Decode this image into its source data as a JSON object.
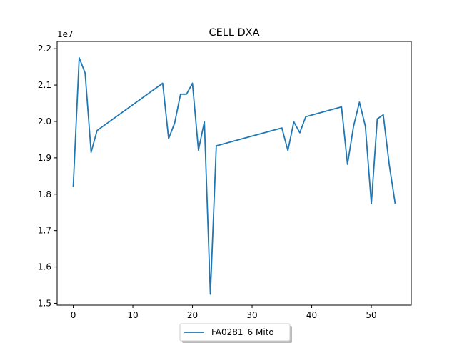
{
  "chart_data": {
    "type": "line",
    "title": "CELL DXA",
    "xlabel": "",
    "ylabel": "",
    "y_offset_label": "1e7",
    "xlim": [
      -2.7,
      56.7
    ],
    "ylim": [
      14950000.0,
      22200000.0
    ],
    "xticks": [
      0,
      10,
      20,
      30,
      40,
      50
    ],
    "xtick_labels": [
      "0",
      "10",
      "20",
      "30",
      "40",
      "50"
    ],
    "yticks": [
      15000000.0,
      16000000.0,
      17000000.0,
      18000000.0,
      19000000.0,
      20000000.0,
      21000000.0,
      22000000.0
    ],
    "ytick_labels": [
      "1.5",
      "1.6",
      "1.7",
      "1.8",
      "1.9",
      "2.0",
      "2.1",
      "2.2"
    ],
    "grid": false,
    "legend_position": "bottom-center",
    "series": [
      {
        "name": "FA0281_6 Mito",
        "color": "#1f77b4",
        "x": [
          0,
          1,
          2,
          3,
          4,
          15,
          16,
          17,
          18,
          19,
          20,
          21,
          22,
          23,
          24,
          35,
          36,
          37,
          38,
          39,
          45,
          46,
          47,
          48,
          49,
          50,
          51,
          52,
          53,
          54
        ],
        "y": [
          18200000,
          21750000,
          21330000,
          19150000,
          19750000,
          21050000,
          19530000,
          19950000,
          20750000,
          20750000,
          21050000,
          19210000,
          19990000,
          15250000,
          19330000,
          19820000,
          19200000,
          19990000,
          19690000,
          20130000,
          20400000,
          18820000,
          19850000,
          20530000,
          19870000,
          17740000,
          20070000,
          20180000,
          18820000,
          17740000
        ]
      }
    ]
  }
}
